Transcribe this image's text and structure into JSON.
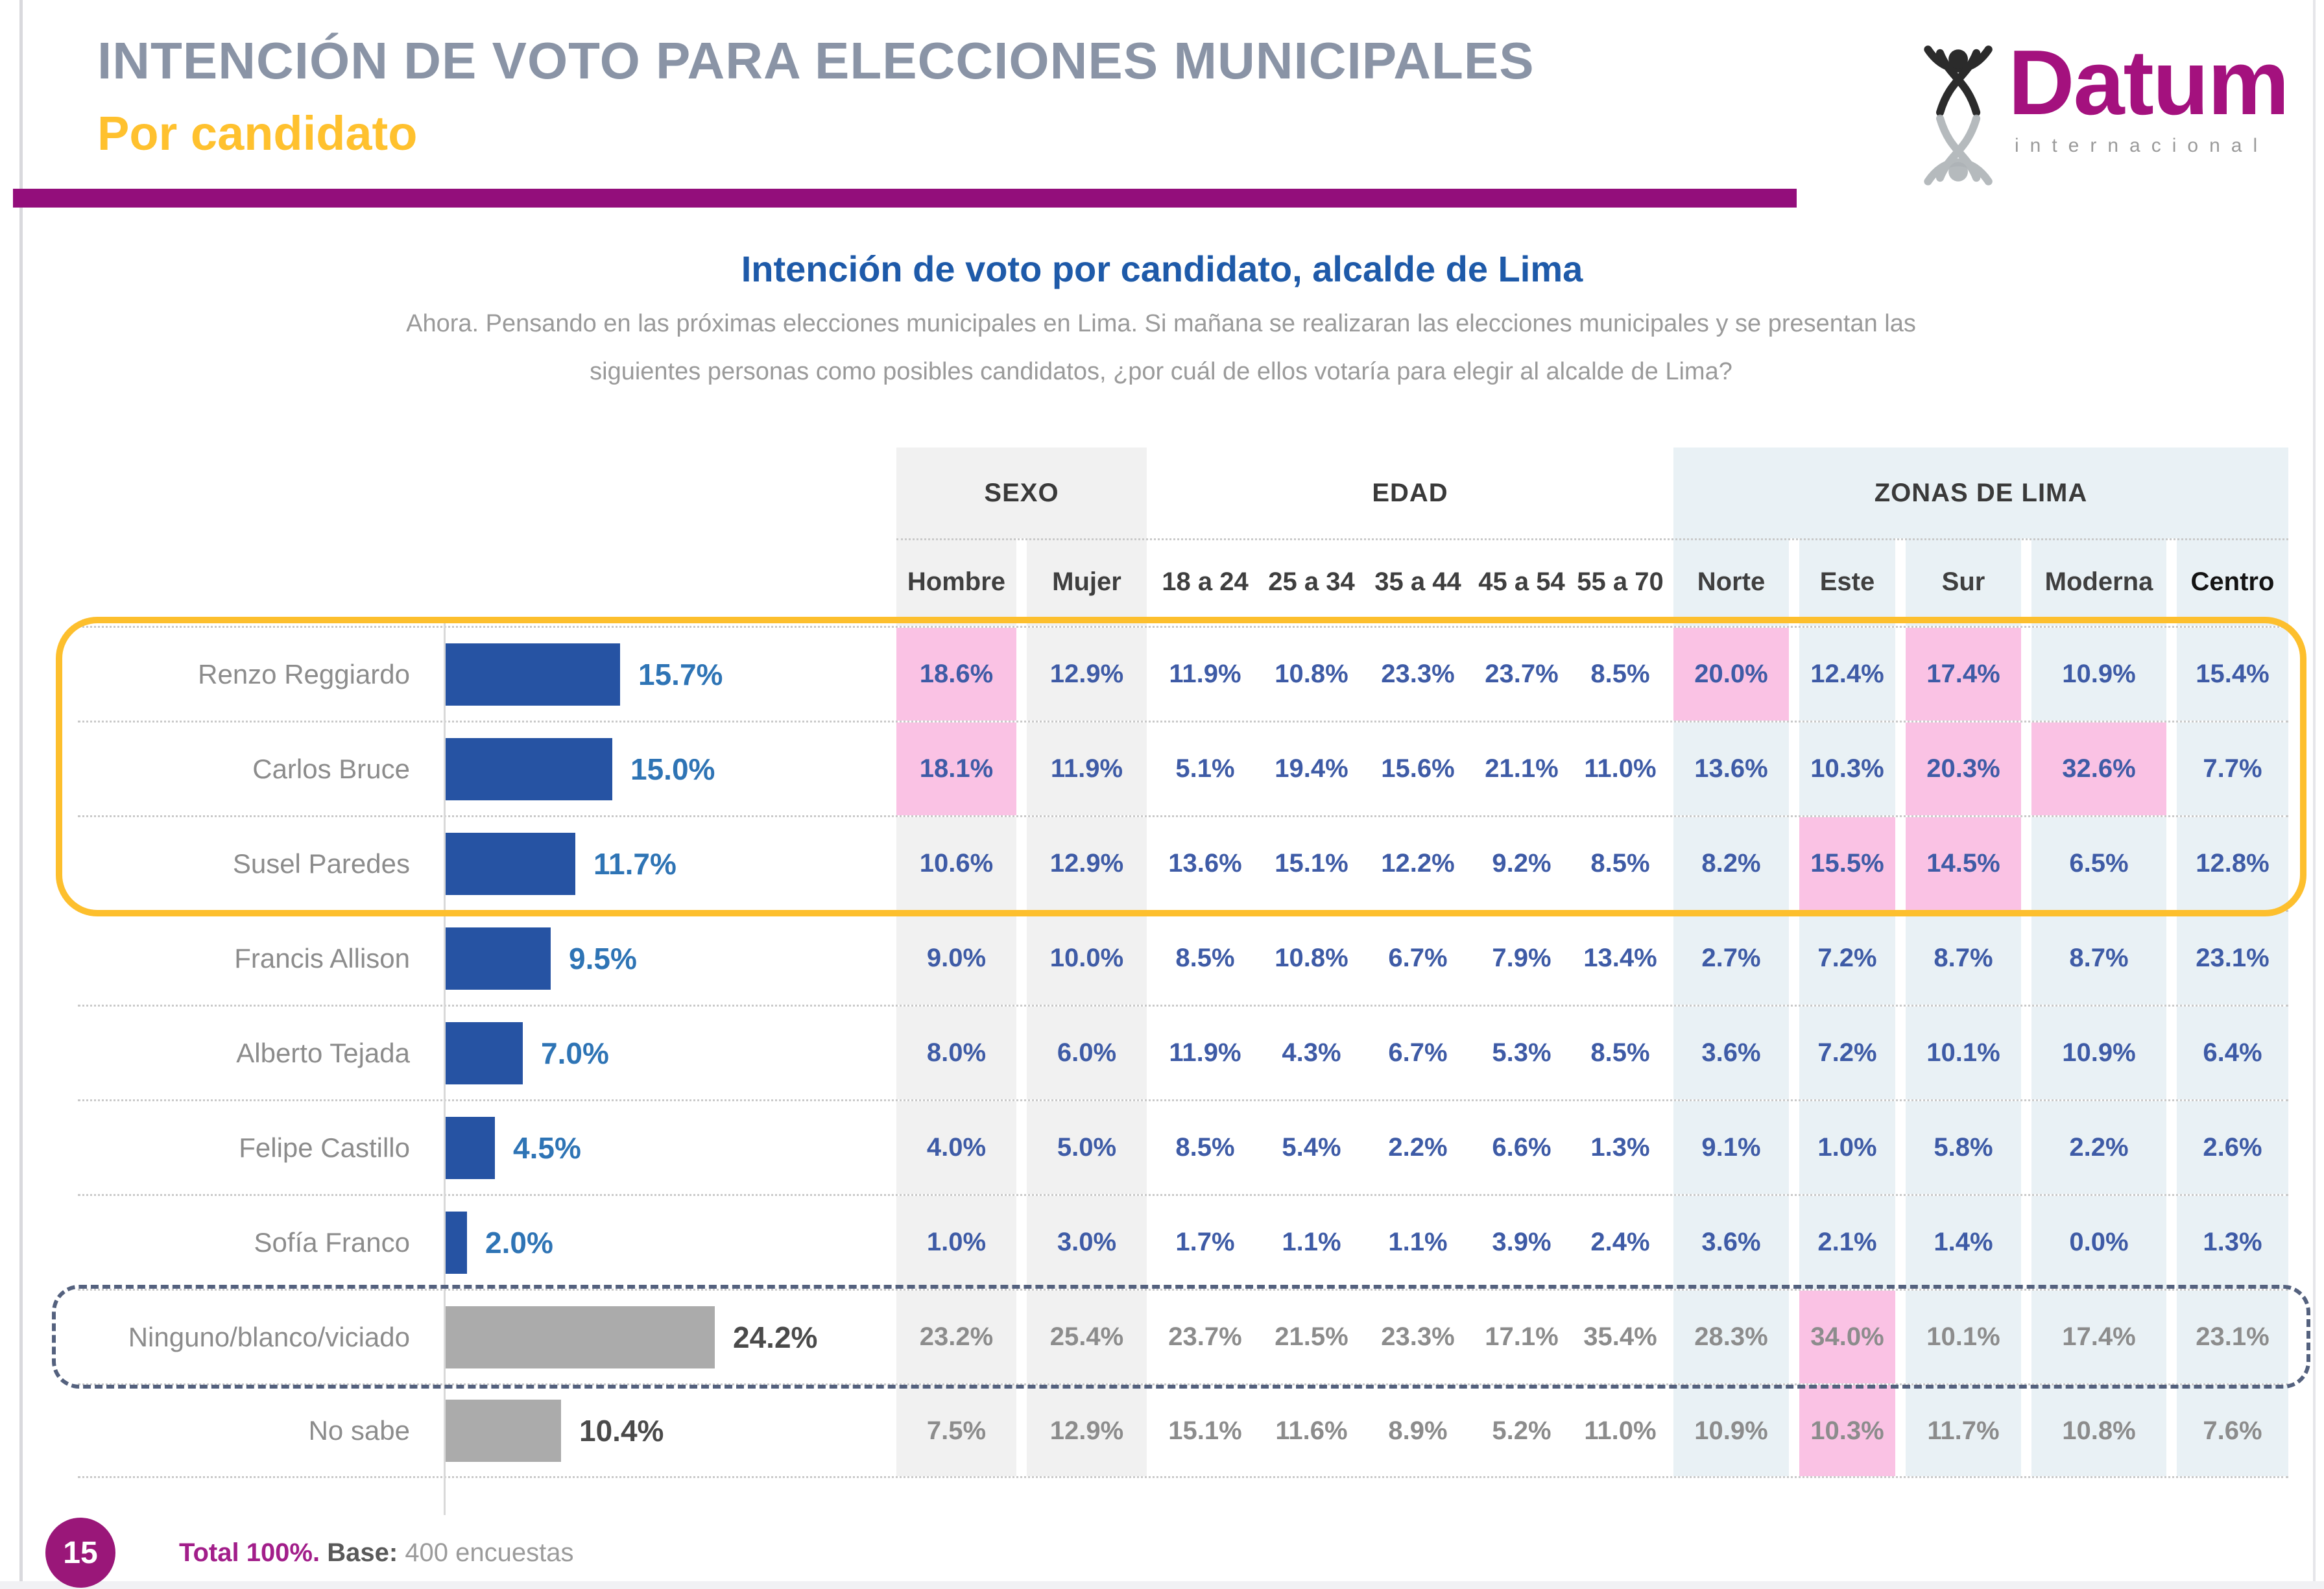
{
  "header": {
    "title": "INTENCIÓN DE VOTO PARA ELECCIONES MUNICIPALES",
    "subtitle": "Por candidato"
  },
  "logo": {
    "brand": "Datum",
    "sub": "internacional"
  },
  "question": {
    "title": "Intención de voto por candidato, alcalde de Lima",
    "line1": "Ahora. Pensando en las próximas elecciones municipales en Lima. Si mañana se realizaran las elecciones municipales y se presentan las",
    "line2": "siguientes personas como posibles candidatos, ¿por cuál de ellos votaría para elegir al alcalde de Lima?"
  },
  "footer": {
    "page": "15",
    "total": "Total 100%.",
    "base_label": "Base:",
    "base_value": "400 encuestas"
  },
  "colors": {
    "title_gray": "#8A94A6",
    "accent_yellow": "#FFC12E",
    "band_purple": "#930E7B",
    "question_blue": "#1E5AA9",
    "bar_blue": "#2653A3",
    "bar_gray": "#ABABAB",
    "value_blue": "#2E74B5",
    "cell_blue": "#3E5BA6",
    "cell_gray": "#8C8C8C",
    "pink_highlight": "#FAC2E4",
    "sexo_column_bg": "#F1F1F1",
    "zonas_column_bg": "#E9F1F5",
    "outline_yellow": "#FDBF2D",
    "outline_dashed": "#54617E",
    "datum_magenta": "#A4117E",
    "footer_purple": "#9A1779"
  },
  "chart_data": {
    "type": "bar",
    "orientation": "horizontal",
    "title": "Intención de voto por candidato, alcalde de Lima",
    "unit": "%",
    "xlim": [
      0,
      25
    ],
    "groups": [
      {
        "label": "SEXO",
        "span": 2
      },
      {
        "label": "EDAD",
        "span": 5
      },
      {
        "label": "ZONAS DE LIMA",
        "span": 5
      }
    ],
    "columns": [
      "Hombre",
      "Mujer",
      "18 a 24",
      "25 a 34",
      "35 a 44",
      "45 a 54",
      "55 a 70",
      "Norte",
      "Este",
      "Sur",
      "Moderna",
      "Centro"
    ],
    "rows": [
      {
        "label": "Renzo Reggiardo",
        "value": 15.7,
        "series": "blue",
        "cells": [
          18.6,
          12.9,
          11.9,
          10.8,
          23.3,
          23.7,
          8.5,
          20.0,
          12.4,
          17.4,
          10.9,
          15.4
        ],
        "pink": [
          0,
          7,
          9
        ]
      },
      {
        "label": "Carlos Bruce",
        "value": 15.0,
        "series": "blue",
        "cells": [
          18.1,
          11.9,
          5.1,
          19.4,
          15.6,
          21.1,
          11.0,
          13.6,
          10.3,
          20.3,
          32.6,
          7.7
        ],
        "pink": [
          0,
          9,
          10
        ]
      },
      {
        "label": "Susel Paredes",
        "value": 11.7,
        "series": "blue",
        "cells": [
          10.6,
          12.9,
          13.6,
          15.1,
          12.2,
          9.2,
          8.5,
          8.2,
          15.5,
          14.5,
          6.5,
          12.8
        ],
        "pink": [
          8,
          9
        ]
      },
      {
        "label": "Francis Allison",
        "value": 9.5,
        "series": "blue",
        "cells": [
          9.0,
          10.0,
          8.5,
          10.8,
          6.7,
          7.9,
          13.4,
          2.7,
          7.2,
          8.7,
          8.7,
          23.1
        ],
        "pink": []
      },
      {
        "label": "Alberto Tejada",
        "value": 7.0,
        "series": "blue",
        "cells": [
          8.0,
          6.0,
          11.9,
          4.3,
          6.7,
          5.3,
          8.5,
          3.6,
          7.2,
          10.1,
          10.9,
          6.4
        ],
        "pink": []
      },
      {
        "label": "Felipe Castillo",
        "value": 4.5,
        "series": "blue",
        "cells": [
          4.0,
          5.0,
          8.5,
          5.4,
          2.2,
          6.6,
          1.3,
          9.1,
          1.0,
          5.8,
          2.2,
          2.6
        ],
        "pink": []
      },
      {
        "label": "Sofía Franco",
        "value": 2.0,
        "series": "blue",
        "cells": [
          1.0,
          3.0,
          1.7,
          1.1,
          1.1,
          3.9,
          2.4,
          3.6,
          2.1,
          1.4,
          0.0,
          1.3
        ],
        "pink": []
      },
      {
        "label": "Ninguno/blanco/viciado",
        "value": 24.2,
        "series": "gray",
        "cells": [
          23.2,
          25.4,
          23.7,
          21.5,
          23.3,
          17.1,
          35.4,
          28.3,
          34.0,
          10.1,
          17.4,
          23.1
        ],
        "pink": [
          8
        ]
      },
      {
        "label": "No sabe",
        "value": 10.4,
        "series": "gray",
        "cells": [
          7.5,
          12.9,
          15.1,
          11.6,
          8.9,
          5.2,
          11.0,
          10.9,
          10.3,
          11.7,
          10.8,
          7.6
        ],
        "pink": [
          8
        ]
      }
    ]
  }
}
